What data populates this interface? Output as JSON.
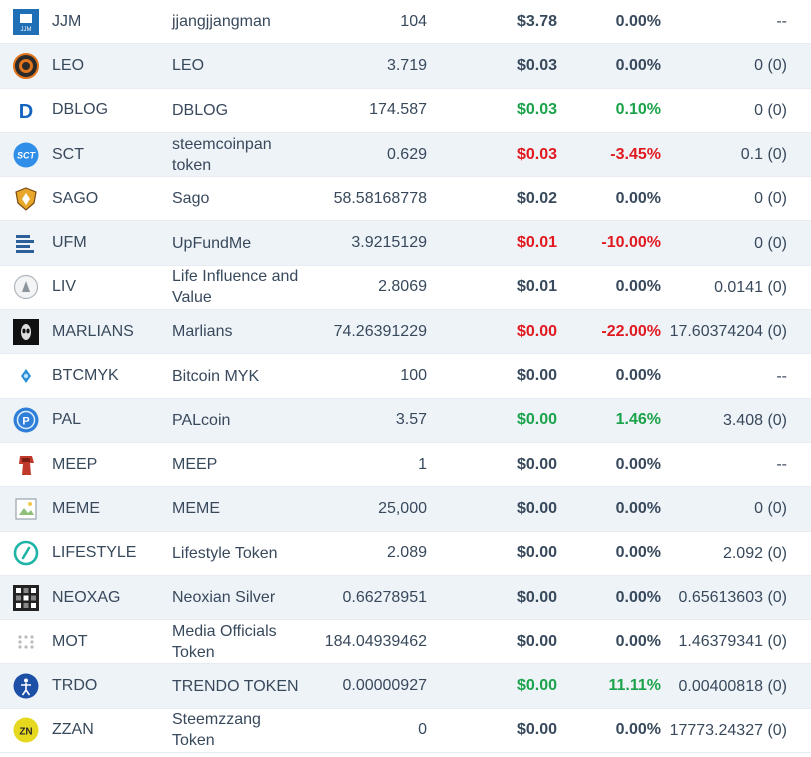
{
  "rows": [
    {
      "symbol": "JJM",
      "name": "jjangjjangman",
      "balance": "104",
      "price": "$3.78",
      "change": "0.00%",
      "value": "--",
      "trend": "flat",
      "icon": "jjm-token-icon",
      "color": "#1e6fb5"
    },
    {
      "symbol": "LEO",
      "name": "LEO",
      "balance": "3.719",
      "price": "$0.03",
      "change": "0.00%",
      "value": "0 (0)",
      "trend": "flat",
      "icon": "leo-lion-icon",
      "color": "#e0741c"
    },
    {
      "symbol": "DBLOG",
      "name": "DBLOG",
      "balance": "174.587",
      "price": "$0.03",
      "change": "0.10%",
      "value": "0 (0)",
      "trend": "up",
      "icon": "dblog-letter-d-icon",
      "color": "#1565c0"
    },
    {
      "symbol": "SCT",
      "name": "steemcoinpan token",
      "balance": "0.629",
      "price": "$0.03",
      "change": "-3.45%",
      "value": "0.1 (0)",
      "trend": "down",
      "icon": "sct-badge-icon",
      "color": "#2f8ee8"
    },
    {
      "symbol": "SAGO",
      "name": "Sago",
      "balance": "58.58168778",
      "price": "$0.02",
      "change": "0.00%",
      "value": "0 (0)",
      "trend": "flat",
      "icon": "sago-shield-icon",
      "color": "#e8a62a"
    },
    {
      "symbol": "UFM",
      "name": "UpFundMe",
      "balance": "3.9215129",
      "price": "$0.01",
      "change": "-10.00%",
      "value": "0 (0)",
      "trend": "down",
      "icon": "ufm-stack-icon",
      "color": "#2d5f9a"
    },
    {
      "symbol": "LIV",
      "name": "Life Influence and Value",
      "balance": "2.8069",
      "price": "$0.01",
      "change": "0.00%",
      "value": "0.0141 (0)",
      "trend": "flat",
      "icon": "liv-circle-icon",
      "color": "#b0b6bc"
    },
    {
      "symbol": "MARLIANS",
      "name": "Marlians",
      "balance": "74.26391229",
      "price": "$0.00",
      "change": "-22.00%",
      "value": "17.60374204 (0)",
      "trend": "down",
      "icon": "marlians-alien-icon",
      "color": "#111111"
    },
    {
      "symbol": "BTCMYK",
      "name": "Bitcoin MYK",
      "balance": "100",
      "price": "$0.00",
      "change": "0.00%",
      "value": "--",
      "trend": "flat",
      "icon": "btcmyk-drop-icon",
      "color": "#2b8fd6"
    },
    {
      "symbol": "PAL",
      "name": "PALcoin",
      "balance": "3.57",
      "price": "$0.00",
      "change": "1.46%",
      "value": "3.408 (0)",
      "trend": "up",
      "icon": "pal-coin-icon",
      "color": "#2f7fd8"
    },
    {
      "symbol": "MEEP",
      "name": "MEEP",
      "balance": "1",
      "price": "$0.00",
      "change": "0.00%",
      "value": "--",
      "trend": "flat",
      "icon": "meep-figure-icon",
      "color": "#c0392b"
    },
    {
      "symbol": "MEME",
      "name": "MEME",
      "balance": "25,000",
      "price": "$0.00",
      "change": "0.00%",
      "value": "0 (0)",
      "trend": "flat",
      "icon": "broken-image-icon",
      "color": "#9aa5ad"
    },
    {
      "symbol": "LIFESTYLE",
      "name": "Lifestyle Token",
      "balance": "2.089",
      "price": "$0.00",
      "change": "0.00%",
      "value": "2.092 (0)",
      "trend": "flat",
      "icon": "lifestyle-ring-icon",
      "color": "#1fb4a6"
    },
    {
      "symbol": "NEOXAG",
      "name": "Neoxian Silver",
      "balance": "0.66278951",
      "price": "$0.00",
      "change": "0.00%",
      "value": "0.65613603 (0)",
      "trend": "flat",
      "icon": "neoxag-grid-icon",
      "color": "#222222"
    },
    {
      "symbol": "MOT",
      "name": "Media Officials Token",
      "balance": "184.04939462",
      "price": "$0.00",
      "change": "0.00%",
      "value": "1.46379341 (0)",
      "trend": "flat",
      "icon": "mot-dots-icon",
      "color": "#bbbbbb"
    },
    {
      "symbol": "TRDO",
      "name": "TRENDO TOKEN",
      "balance": "0.00000927",
      "price": "$0.00",
      "change": "11.11%",
      "value": "0.00400818 (0)",
      "trend": "up",
      "icon": "trdo-figure-icon",
      "color": "#1c4fa6"
    },
    {
      "symbol": "ZZAN",
      "name": "Steemzzang Token",
      "balance": "0",
      "price": "$0.00",
      "change": "0.00%",
      "value": "17773.24327 (0)",
      "trend": "flat",
      "icon": "zzan-badge-icon",
      "color": "#e6d81f"
    }
  ]
}
